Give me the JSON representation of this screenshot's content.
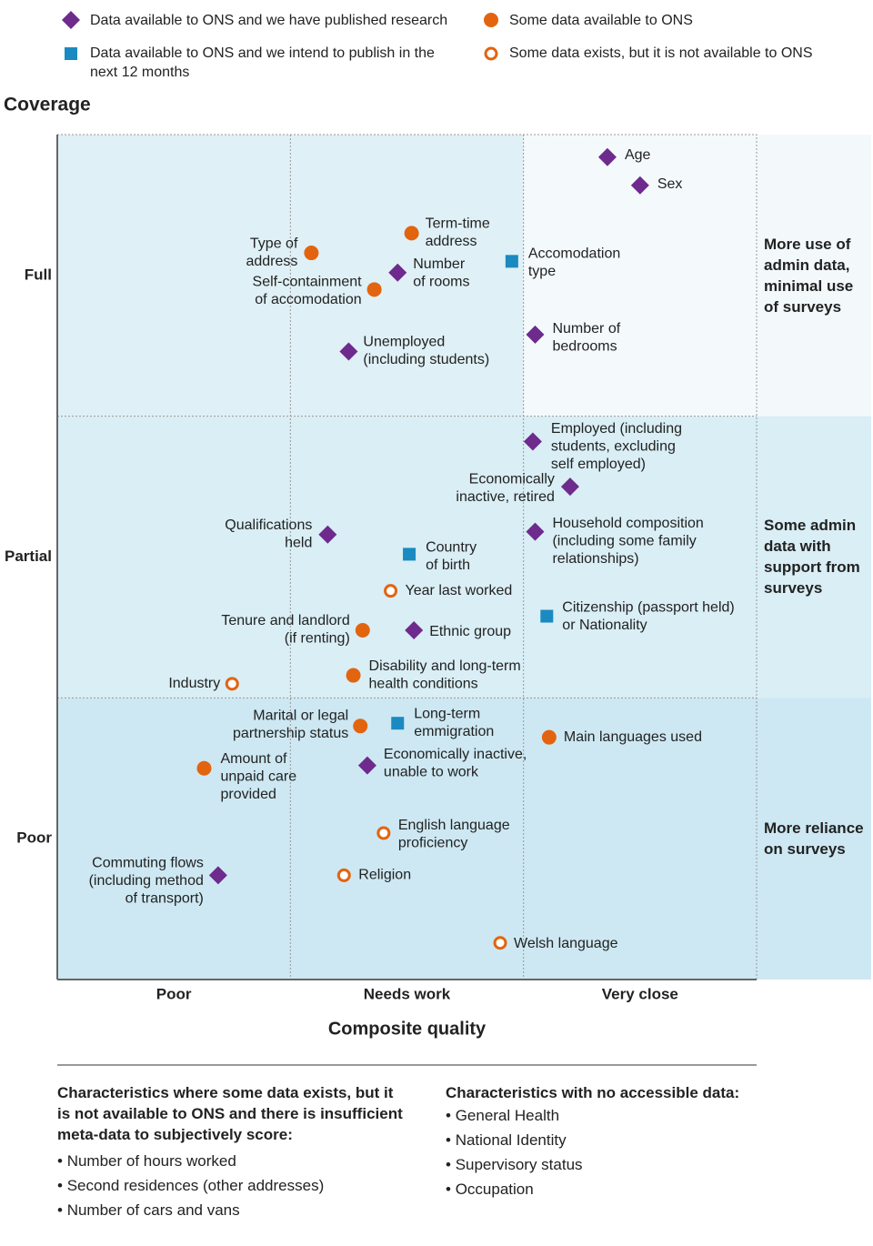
{
  "chart_data": {
    "type": "scatter",
    "y_label": "Coverage",
    "x_label": "Composite quality",
    "xlim": [
      0,
      3
    ],
    "ylim": [
      0,
      3
    ],
    "xticks": [
      {
        "value": 0.5,
        "label": "Poor"
      },
      {
        "value": 1.5,
        "label": "Needs work"
      },
      {
        "value": 2.5,
        "label": "Very close"
      }
    ],
    "yticks": [
      {
        "value": 2.5,
        "label": "Full"
      },
      {
        "value": 1.5,
        "label": "Partial"
      },
      {
        "value": 0.5,
        "label": "Poor"
      }
    ],
    "grid_lines": [
      1,
      2
    ],
    "band_notes": [
      "More use of admin data, minimal use of surveys",
      "Some admin data with support from surveys",
      "More reliance on surveys"
    ],
    "series": [
      {
        "name": "Data available to ONS and we have published research",
        "color": "#6e2a8d",
        "marker": "diamond",
        "x": [
          2.36,
          2.5,
          1.46,
          2.05,
          1.25,
          2.04,
          2.2,
          1.16,
          2.05,
          1.53,
          1.33,
          0.69
        ],
        "values": [
          2.92,
          2.82,
          2.51,
          2.29,
          2.23,
          1.91,
          1.75,
          1.58,
          1.59,
          1.24,
          0.76,
          0.37
        ],
        "point_labels": [
          [
            "Age"
          ],
          [
            "Sex"
          ],
          [
            "Number",
            "of rooms"
          ],
          [
            "Number of",
            "bedrooms"
          ],
          [
            "Unemployed",
            "(including students)"
          ],
          [
            "Employed (including",
            "students, excluding",
            "self employed)"
          ],
          [
            "Economically",
            "inactive, retired"
          ],
          [
            "Qualifications",
            "held"
          ],
          [
            "Household composition",
            "(including some family",
            "relationships)"
          ],
          [
            "Ethnic group"
          ],
          [
            "Economically inactive,",
            "unable to work"
          ],
          [
            "Commuting flows",
            "(including method",
            "of transport)"
          ]
        ]
      },
      {
        "name": "Data available to ONS and we intend to publish in the next 12 months",
        "color": "#1a8ac0",
        "marker": "square",
        "x": [
          1.95,
          1.51,
          2.1,
          1.46
        ],
        "values": [
          2.55,
          1.51,
          1.29,
          0.91
        ],
        "point_labels": [
          [
            "Accomodation",
            "type"
          ],
          [
            "Country",
            "of birth"
          ],
          [
            "Citizenship (passport held)",
            "or Nationality"
          ],
          [
            "Long-term",
            "emmigration"
          ]
        ]
      },
      {
        "name": "Some data available to ONS",
        "color": "#e3640f",
        "marker": "circle",
        "x": [
          1.52,
          1.09,
          1.36,
          1.31,
          1.27,
          1.3,
          2.11,
          0.63
        ],
        "values": [
          2.65,
          2.58,
          2.45,
          1.24,
          1.08,
          0.9,
          0.86,
          0.75
        ],
        "point_labels": [
          [
            "Term-time",
            "address"
          ],
          [
            "Type of",
            "address"
          ],
          [
            "Self-containment",
            "of accomodation"
          ],
          [
            "Tenure and landlord",
            "(if renting)"
          ],
          [
            "Disability and long-term",
            "health conditions"
          ],
          [
            "Marital or legal",
            "partnership status"
          ],
          [
            "Main languages used"
          ],
          [
            "Amount of",
            "unpaid care",
            "provided"
          ]
        ]
      },
      {
        "name": "Some data exists, but it is not available to ONS",
        "color": "#e3640f",
        "marker": "circle-open",
        "x": [
          1.43,
          0.75,
          1.4,
          1.23,
          1.9
        ],
        "values": [
          1.38,
          1.05,
          0.52,
          0.37,
          0.13
        ],
        "point_labels": [
          [
            "Year last worked"
          ],
          [
            "Industry"
          ],
          [
            "English language",
            "proficiency"
          ],
          [
            "Religion"
          ],
          [
            "Welsh language"
          ]
        ]
      }
    ]
  },
  "notes": {
    "left": {
      "heading": "Characteristics where some data exists, but it is not available to ONS and there is insufficient meta-data to subjectively score:",
      "items": [
        "Number of hours worked",
        "Second residences (other addresses)",
        "Number of cars and vans"
      ]
    },
    "right": {
      "heading": "Characteristics with no accessible data:",
      "items": [
        "General Health",
        "National Identity",
        "Supervisory status",
        "Occupation"
      ]
    }
  }
}
